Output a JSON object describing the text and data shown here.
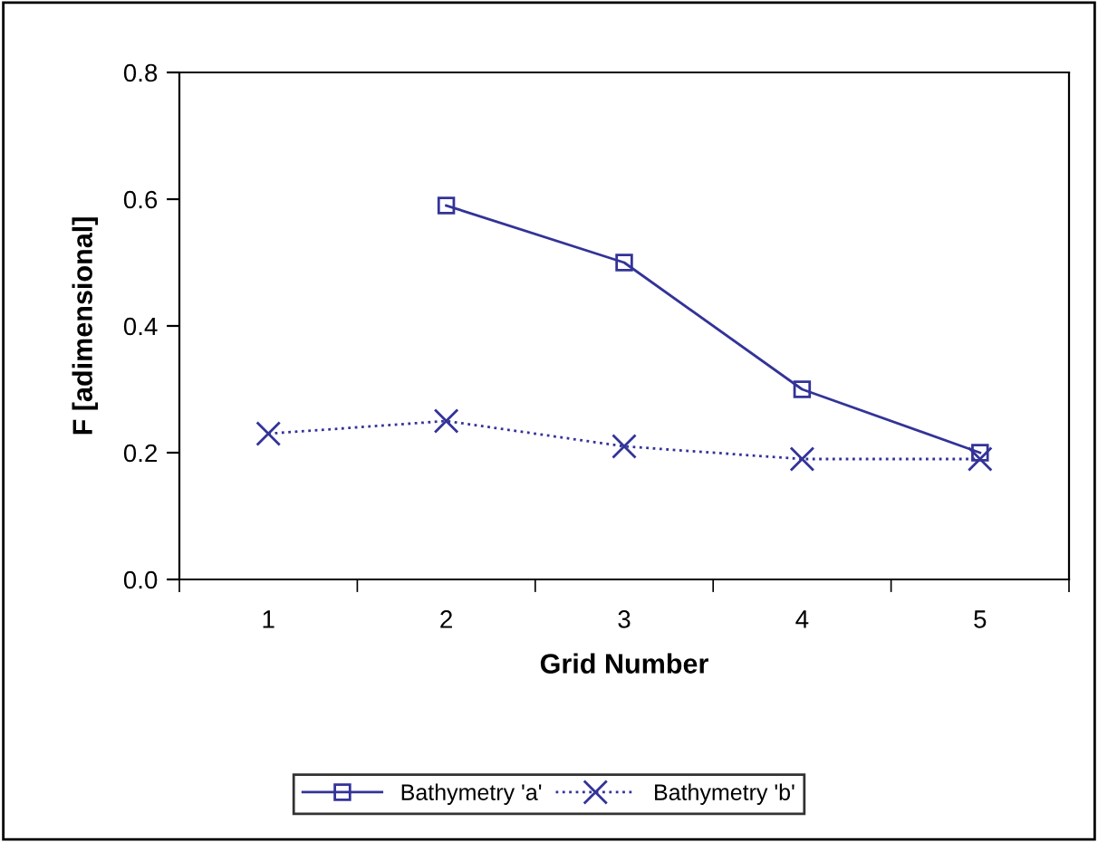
{
  "chart_data": {
    "type": "line",
    "xlabel": "Grid Number",
    "ylabel": "F [adimensional]",
    "categories": [
      "1",
      "2",
      "3",
      "4",
      "5"
    ],
    "series": [
      {
        "name": "Bathymetry 'a'",
        "color": "#333399",
        "values": [
          null,
          0.59,
          0.5,
          0.3,
          0.2
        ],
        "marker": "square",
        "line_style": "solid"
      },
      {
        "name": "Bathymetry 'b'",
        "color": "#333399",
        "values": [
          0.23,
          0.25,
          0.21,
          0.19,
          0.19
        ],
        "marker": "cross",
        "line_style": "dotted"
      }
    ],
    "ylim": [
      0,
      0.8
    ],
    "yticks": [
      {
        "value": 0,
        "label": "0.0"
      },
      0.2,
      0.4,
      0.6,
      0.8
    ],
    "grid": false,
    "legend": "bottom"
  }
}
